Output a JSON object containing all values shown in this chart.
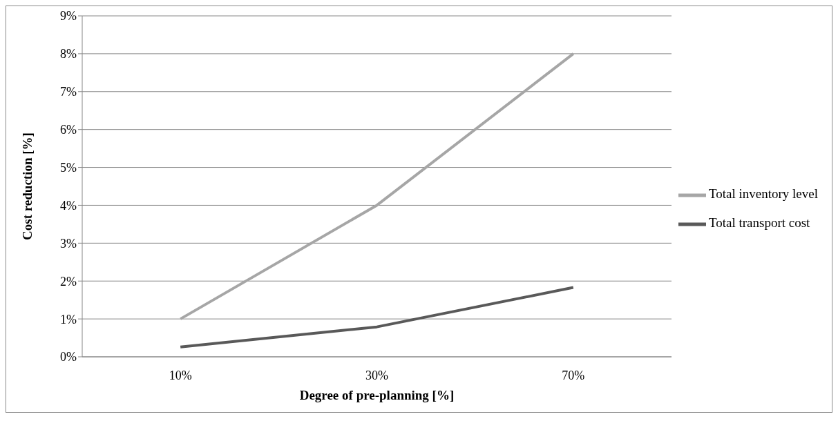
{
  "chart_data": {
    "type": "line",
    "xlabel": "Degree of pre-planning [%]",
    "ylabel": "Cost reduction [%]",
    "categories": [
      "10%",
      "30%",
      "70%"
    ],
    "series": [
      {
        "name": "Total transport cost",
        "color": "#595959",
        "values": [
          0.26,
          0.79,
          1.83
        ]
      },
      {
        "name": "Total inventory level",
        "color": "#a6a6a6",
        "values": [
          1,
          4,
          8
        ]
      }
    ],
    "ylim": [
      0,
      9
    ],
    "yticks": [
      {
        "value": 0,
        "label": "0%"
      },
      {
        "value": 1,
        "label": "1%"
      },
      {
        "value": 2,
        "label": "2%"
      },
      {
        "value": 3,
        "label": "3%"
      },
      {
        "value": 4,
        "label": "4%"
      },
      {
        "value": 5,
        "label": "5%"
      },
      {
        "value": 6,
        "label": "6%"
      },
      {
        "value": 7,
        "label": "7%"
      },
      {
        "value": 8,
        "label": "8%"
      },
      {
        "value": 9,
        "label": "9%"
      }
    ],
    "grid": "y",
    "legend": "right",
    "marker": "none",
    "line_style": "solid"
  }
}
